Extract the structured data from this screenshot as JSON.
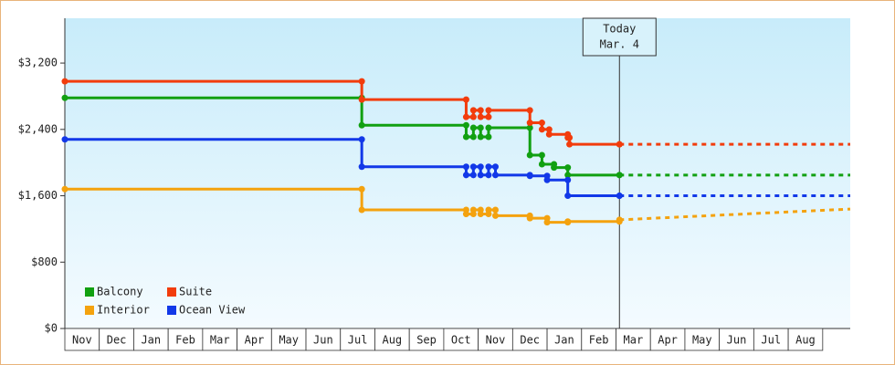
{
  "chart_data": {
    "type": "step-line",
    "categories": [
      "Nov",
      "Dec",
      "Jan",
      "Feb",
      "Mar",
      "Apr",
      "May",
      "Jun",
      "Jul",
      "Aug",
      "Sep",
      "Oct",
      "Nov",
      "Dec",
      "Jan",
      "Feb",
      "Mar",
      "Apr",
      "May",
      "Jun",
      "Jul",
      "Aug"
    ],
    "xlim": [
      0,
      22.8
    ],
    "ylim": [
      0,
      3740
    ],
    "yticks": [
      {
        "value": 0,
        "label": "$0"
      },
      {
        "value": 800,
        "label": "$800"
      },
      {
        "value": 1600,
        "label": "$1,600"
      },
      {
        "value": 2400,
        "label": "$2,400"
      },
      {
        "value": 3200,
        "label": "$3,200"
      }
    ],
    "annotation": {
      "x": 16.1,
      "lines": [
        "Today",
        "Mar. 4"
      ]
    },
    "series": [
      {
        "name": "Balcony",
        "color": "#11a011",
        "x": [
          0,
          8.62,
          11.65,
          11.86,
          12.07,
          12.3,
          13.5,
          13.85,
          14.2,
          14.6,
          16.1
        ],
        "values": [
          2780,
          2450,
          2310,
          2420,
          2310,
          2420,
          2090,
          1980,
          1940,
          1850,
          1850
        ],
        "forecast": {
          "x": [
            16.1,
            22.8
          ],
          "values": [
            1850,
            1850
          ]
        }
      },
      {
        "name": "Suite",
        "color": "#f23c0c",
        "x": [
          0,
          8.62,
          11.65,
          11.86,
          12.07,
          12.3,
          13.5,
          13.85,
          14.06,
          14.6,
          14.65,
          16.1
        ],
        "values": [
          2980,
          2760,
          2550,
          2630,
          2550,
          2630,
          2480,
          2400,
          2340,
          2300,
          2220,
          2220
        ],
        "forecast": {
          "x": [
            16.1,
            22.8
          ],
          "values": [
            2220,
            2220
          ]
        }
      },
      {
        "name": "Interior",
        "color": "#f4a20e",
        "x": [
          0,
          8.62,
          11.65,
          11.86,
          12.07,
          12.3,
          12.5,
          13.5,
          14.0,
          14.6,
          16.1
        ],
        "values": [
          1680,
          1430,
          1380,
          1430,
          1380,
          1430,
          1360,
          1330,
          1280,
          1290,
          1310
        ],
        "forecast": {
          "x": [
            16.1,
            22.8
          ],
          "values": [
            1310,
            1440
          ]
        }
      },
      {
        "name": "Ocean View",
        "color": "#1238e8",
        "x": [
          0,
          8.62,
          11.65,
          11.86,
          12.07,
          12.3,
          12.5,
          13.5,
          14.0,
          14.6,
          16.1
        ],
        "values": [
          2280,
          1950,
          1850,
          1950,
          1850,
          1950,
          1850,
          1840,
          1790,
          1600,
          1600
        ],
        "forecast": {
          "x": [
            16.1,
            22.8
          ],
          "values": [
            1600,
            1600
          ]
        }
      }
    ]
  }
}
